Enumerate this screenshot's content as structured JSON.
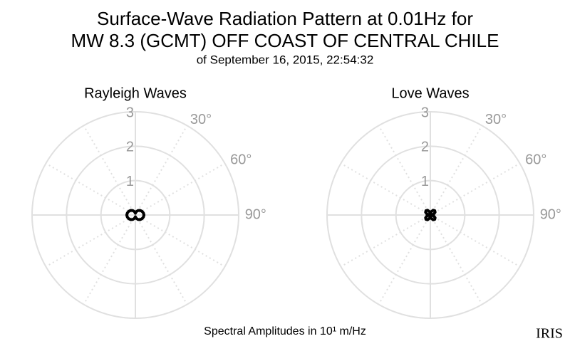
{
  "title": [
    "Surface-Wave Radiation Pattern at 0.01Hz for",
    "MW 8.3 (GCMT) OFF COAST OF CENTRAL CHILE"
  ],
  "subtitle": "of September 16, 2015, 22:54:32",
  "footnote": "Spectral Amplitudes in 10¹ m/Hz",
  "logo": "IRIS",
  "chart_data": [
    {
      "type": "polar",
      "title": "Rayleigh Waves",
      "color": "#000000",
      "theta": [
        0,
        15,
        30,
        45,
        60,
        75,
        90,
        105,
        120,
        135,
        150,
        165,
        180,
        195,
        210,
        225,
        240,
        255,
        270,
        285,
        300,
        315,
        330,
        345
      ],
      "r": [
        0.05,
        0.1,
        0.15,
        0.19,
        0.22,
        0.24,
        0.25,
        0.24,
        0.22,
        0.19,
        0.15,
        0.1,
        0.05,
        0.1,
        0.15,
        0.19,
        0.22,
        0.24,
        0.25,
        0.24,
        0.22,
        0.19,
        0.15,
        0.1
      ],
      "rlim": [
        0,
        3
      ],
      "rticks": [
        1,
        2,
        3
      ],
      "thetaticks": [
        {
          "value": 30,
          "label": "30°"
        },
        {
          "value": 60,
          "label": "60°"
        },
        {
          "value": 90,
          "label": "90°"
        }
      ]
    },
    {
      "type": "polar",
      "title": "Love Waves",
      "color": "#000000",
      "theta": [
        0,
        15,
        30,
        45,
        60,
        75,
        90,
        105,
        120,
        135,
        150,
        165,
        180,
        195,
        210,
        225,
        240,
        255,
        270,
        285,
        300,
        315,
        330,
        345
      ],
      "r": [
        0.03,
        0.1,
        0.16,
        0.18,
        0.16,
        0.1,
        0.03,
        0.1,
        0.16,
        0.18,
        0.16,
        0.1,
        0.03,
        0.1,
        0.16,
        0.18,
        0.16,
        0.1,
        0.03,
        0.1,
        0.16,
        0.18,
        0.16,
        0.1
      ],
      "rlim": [
        0,
        3
      ],
      "rticks": [
        1,
        2,
        3
      ],
      "thetaticks": [
        {
          "value": 30,
          "label": "30°"
        },
        {
          "value": 60,
          "label": "60°"
        },
        {
          "value": 90,
          "label": "90°"
        }
      ]
    }
  ]
}
